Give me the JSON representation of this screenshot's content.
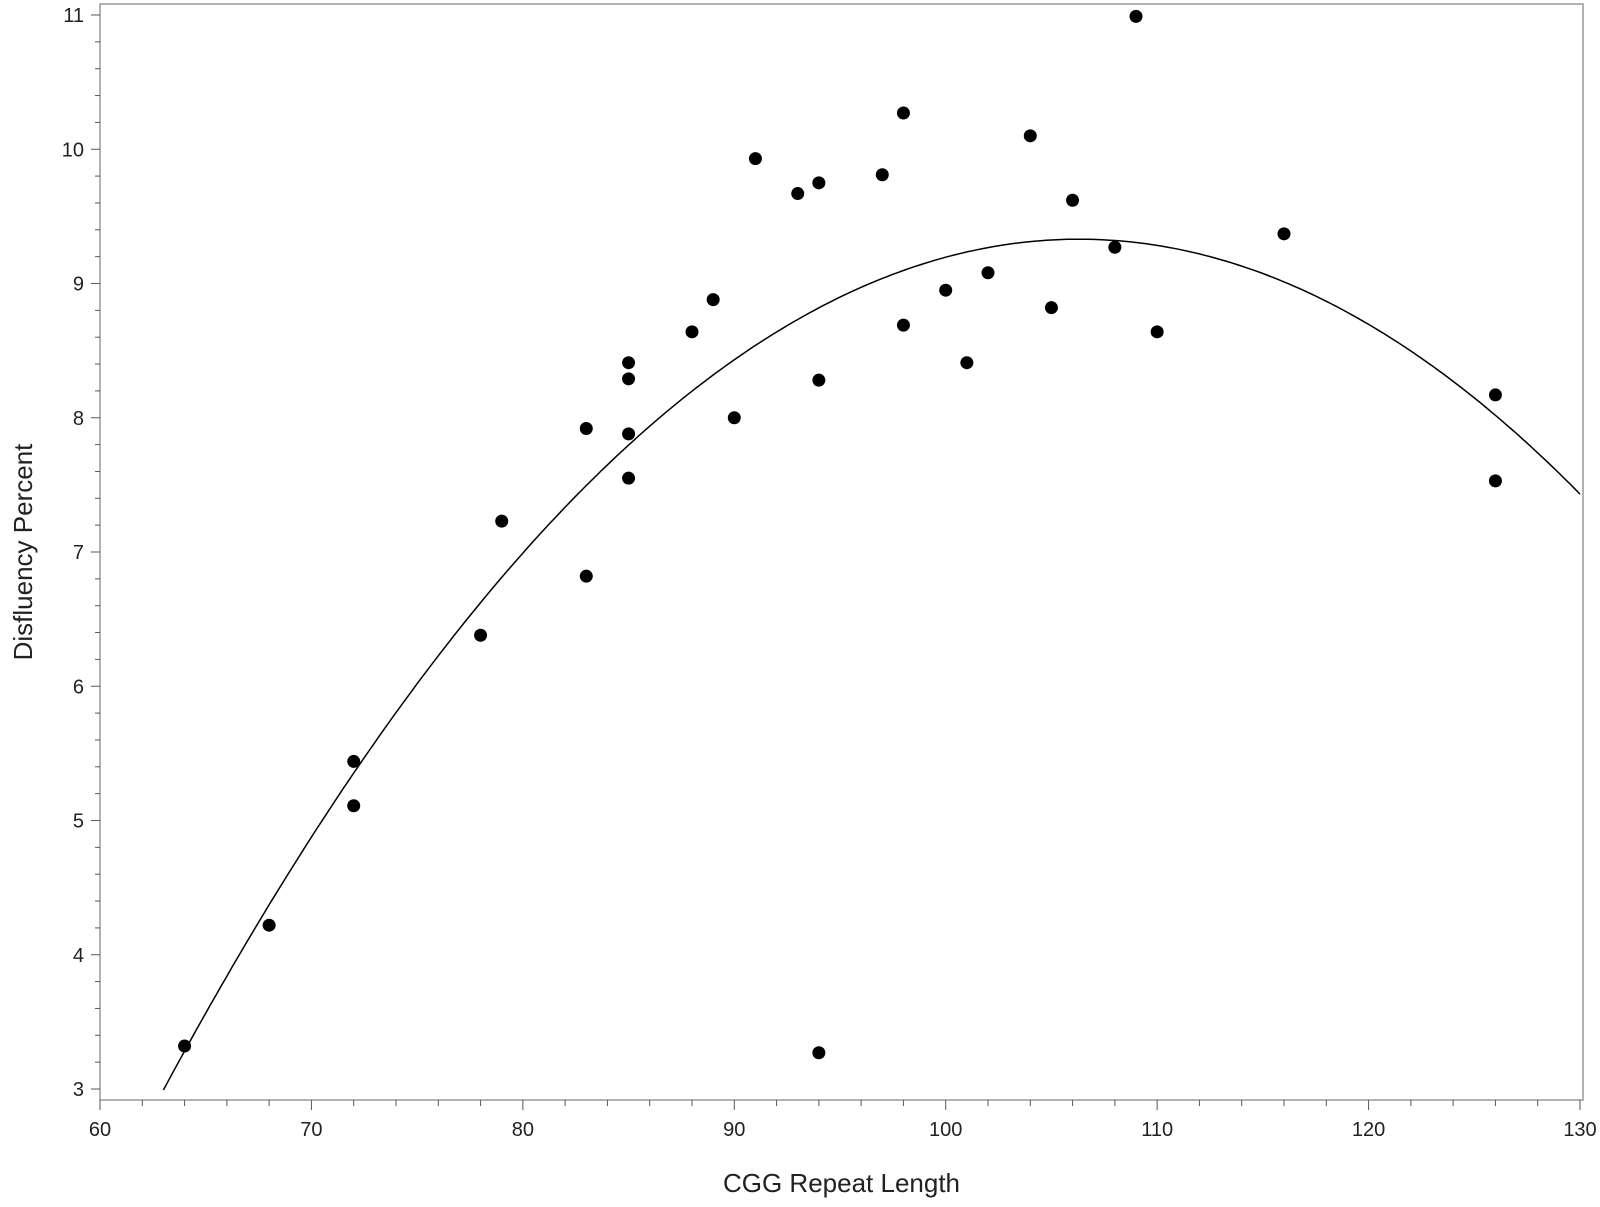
{
  "chart_data": {
    "type": "scatter",
    "title": "",
    "xlabel": "CGG Repeat Length",
    "ylabel": "Disfluency Percent",
    "xlim": [
      60,
      130
    ],
    "ylim": [
      2.9,
      11.1
    ],
    "x_ticks": [
      60,
      70,
      80,
      90,
      100,
      110,
      120,
      130
    ],
    "y_ticks": [
      3,
      4,
      5,
      6,
      7,
      8,
      9,
      10,
      11
    ],
    "x_tick_labels": [
      "60",
      "70",
      "80",
      "90",
      "100",
      "110",
      "120",
      "130"
    ],
    "y_tick_labels": [
      "3",
      "4",
      "5",
      "6",
      "7",
      "8",
      "9",
      "10",
      "11"
    ],
    "grid": false,
    "legend": "none",
    "colors": {
      "points": "#000000",
      "curve": "#000000",
      "frame": "#999999"
    },
    "points": [
      {
        "x": 64,
        "y": 3.32
      },
      {
        "x": 68,
        "y": 4.22
      },
      {
        "x": 72,
        "y": 5.44
      },
      {
        "x": 72,
        "y": 5.11
      },
      {
        "x": 78,
        "y": 6.38
      },
      {
        "x": 79,
        "y": 7.23
      },
      {
        "x": 83,
        "y": 7.92
      },
      {
        "x": 83,
        "y": 6.82
      },
      {
        "x": 85,
        "y": 8.41
      },
      {
        "x": 85,
        "y": 8.29
      },
      {
        "x": 85,
        "y": 7.88
      },
      {
        "x": 85,
        "y": 7.55
      },
      {
        "x": 88,
        "y": 8.64
      },
      {
        "x": 89,
        "y": 8.88
      },
      {
        "x": 90,
        "y": 8.0
      },
      {
        "x": 91,
        "y": 9.93
      },
      {
        "x": 93,
        "y": 9.67
      },
      {
        "x": 94,
        "y": 9.75
      },
      {
        "x": 94,
        "y": 8.28
      },
      {
        "x": 94,
        "y": 3.27
      },
      {
        "x": 97,
        "y": 9.81
      },
      {
        "x": 98,
        "y": 10.27
      },
      {
        "x": 98,
        "y": 8.69
      },
      {
        "x": 100,
        "y": 8.95
      },
      {
        "x": 101,
        "y": 8.41
      },
      {
        "x": 102,
        "y": 9.08
      },
      {
        "x": 104,
        "y": 10.1
      },
      {
        "x": 105,
        "y": 8.82
      },
      {
        "x": 106,
        "y": 9.62
      },
      {
        "x": 108,
        "y": 9.27
      },
      {
        "x": 109,
        "y": 10.99
      },
      {
        "x": 110,
        "y": 8.64
      },
      {
        "x": 116,
        "y": 9.37
      },
      {
        "x": 126,
        "y": 8.17
      },
      {
        "x": 126,
        "y": 7.53
      }
    ],
    "fit": {
      "type": "quadratic",
      "vertex_x": 106.3,
      "vertex_y": 9.33,
      "a": -0.00338,
      "x_range": [
        63,
        130
      ]
    }
  }
}
